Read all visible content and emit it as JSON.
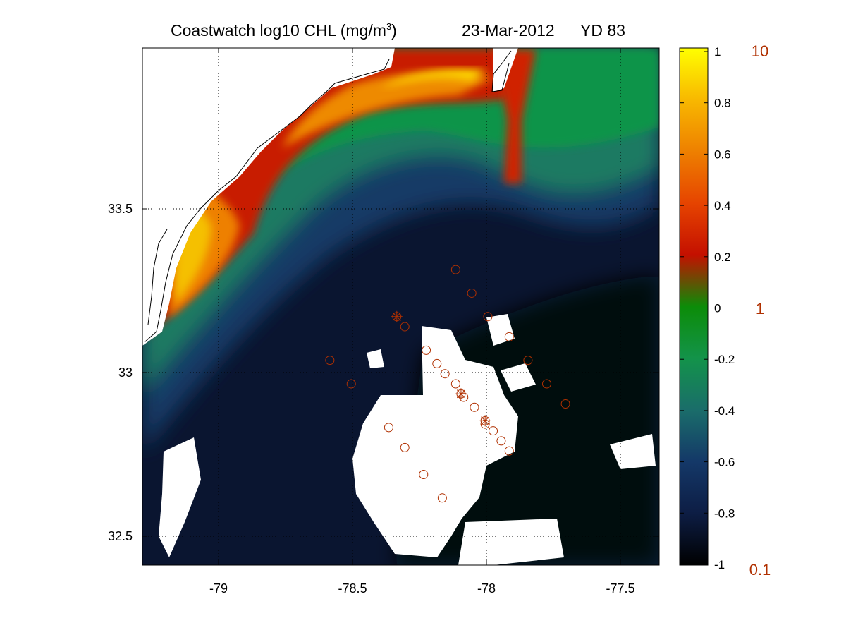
{
  "title": {
    "main": "Coastwatch  log10  CHL (mg/m",
    "unit_sup": "3",
    "close": ")",
    "date": "23-Mar-2012",
    "yd": "YD 83"
  },
  "x_ticks": [
    "-79",
    "-78.5",
    "-78",
    "-77.5"
  ],
  "y_ticks": [
    "33.5",
    "33",
    "32.5"
  ],
  "colorbar": {
    "log_ticks": [
      "1",
      "0.8",
      "0.6",
      "0.4",
      "0.2",
      "0",
      "-0.2",
      "-0.4",
      "-0.6",
      "-0.8",
      "-1"
    ],
    "linear_labels": [
      "10",
      "1",
      "0.1"
    ],
    "linear_color": "#b03000"
  },
  "map": {
    "lon_range": [
      -79.28,
      -77.35
    ],
    "lat_range": [
      32.43,
      33.97
    ],
    "station_color": "#b03000",
    "stations": [
      {
        "lon": -78.11,
        "lat": 33.31
      },
      {
        "lon": -78.05,
        "lat": 33.24
      },
      {
        "lon": -77.99,
        "lat": 33.17
      },
      {
        "lon": -77.91,
        "lat": 33.11
      },
      {
        "lon": -78.33,
        "lat": 33.17
      },
      {
        "lon": -78.3,
        "lat": 33.14
      },
      {
        "lon": -78.58,
        "lat": 33.04
      },
      {
        "lon": -78.5,
        "lat": 32.97
      },
      {
        "lon": -78.22,
        "lat": 33.07
      },
      {
        "lon": -78.18,
        "lat": 33.03
      },
      {
        "lon": -78.15,
        "lat": 33.0
      },
      {
        "lon": -78.11,
        "lat": 32.97
      },
      {
        "lon": -78.09,
        "lat": 32.94
      },
      {
        "lon": -78.08,
        "lat": 32.93
      },
      {
        "lon": -78.04,
        "lat": 32.9
      },
      {
        "lon": -78.0,
        "lat": 32.86
      },
      {
        "lon": -78.0,
        "lat": 32.85
      },
      {
        "lon": -77.97,
        "lat": 32.83
      },
      {
        "lon": -77.94,
        "lat": 32.8
      },
      {
        "lon": -77.91,
        "lat": 32.77
      },
      {
        "lon": -78.36,
        "lat": 32.84
      },
      {
        "lon": -78.3,
        "lat": 32.78
      },
      {
        "lon": -78.23,
        "lat": 32.7
      },
      {
        "lon": -78.16,
        "lat": 32.63
      },
      {
        "lon": -77.84,
        "lat": 33.04
      },
      {
        "lon": -77.77,
        "lat": 32.97
      },
      {
        "lon": -77.7,
        "lat": 32.91
      }
    ],
    "star_stations": [
      {
        "lon": -78.33,
        "lat": 33.17
      },
      {
        "lon": -78.09,
        "lat": 32.94
      },
      {
        "lon": -78.0,
        "lat": 32.86
      }
    ]
  }
}
